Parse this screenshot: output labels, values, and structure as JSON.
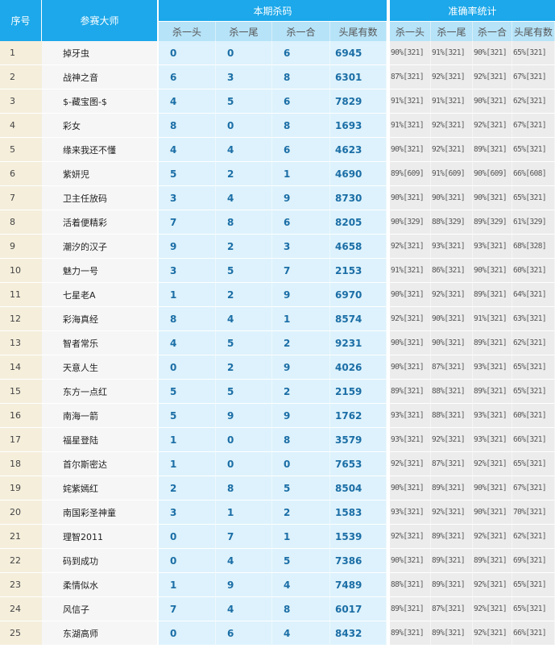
{
  "header": {
    "no": "序号",
    "name": "参赛大师",
    "group1": "本期杀码",
    "group2": "准确率统计",
    "cols": [
      "杀一头",
      "杀一尾",
      "杀一合",
      "头尾有数"
    ],
    "stat_cols": [
      "杀一头",
      "杀一尾",
      "杀一合",
      "头尾有数"
    ]
  },
  "colors": {
    "header": "#1ca8ea",
    "subheader": "#b6e3f8",
    "number": "#1b6ea6"
  },
  "rows": [
    {
      "no": "1",
      "name": "掉牙虫",
      "k": [
        "0",
        "0",
        "6",
        "6945"
      ],
      "s": [
        "90%[321]",
        "91%[321]",
        "90%[321]",
        "65%[321]"
      ]
    },
    {
      "no": "2",
      "name": "战神之音",
      "k": [
        "6",
        "3",
        "8",
        "6301"
      ],
      "s": [
        "87%[321]",
        "92%[321]",
        "92%[321]",
        "67%[321]"
      ]
    },
    {
      "no": "3",
      "name": "$-藏宝图-$",
      "k": [
        "4",
        "5",
        "6",
        "7829"
      ],
      "s": [
        "91%[321]",
        "91%[321]",
        "90%[321]",
        "62%[321]"
      ]
    },
    {
      "no": "4",
      "name": "彩女",
      "k": [
        "8",
        "0",
        "8",
        "1693"
      ],
      "s": [
        "91%[321]",
        "92%[321]",
        "92%[321]",
        "67%[321]"
      ]
    },
    {
      "no": "5",
      "name": "缘来我还不懂",
      "k": [
        "4",
        "4",
        "6",
        "4623"
      ],
      "s": [
        "90%[321]",
        "92%[321]",
        "89%[321]",
        "65%[321]"
      ]
    },
    {
      "no": "6",
      "name": "紫妍児",
      "k": [
        "5",
        "2",
        "1",
        "4690"
      ],
      "s": [
        "89%[609]",
        "91%[609]",
        "90%[609]",
        "66%[608]"
      ]
    },
    {
      "no": "7",
      "name": "卫主任放码",
      "k": [
        "3",
        "4",
        "9",
        "8730"
      ],
      "s": [
        "90%[321]",
        "90%[321]",
        "90%[321]",
        "65%[321]"
      ]
    },
    {
      "no": "8",
      "name": "活着便精彩",
      "k": [
        "7",
        "8",
        "6",
        "8205"
      ],
      "s": [
        "90%[329]",
        "88%[329]",
        "89%[329]",
        "61%[329]"
      ]
    },
    {
      "no": "9",
      "name": "潮汐的汉子",
      "k": [
        "9",
        "2",
        "3",
        "4658"
      ],
      "s": [
        "92%[321]",
        "93%[321]",
        "93%[321]",
        "68%[328]"
      ]
    },
    {
      "no": "10",
      "name": "魅力一号",
      "k": [
        "3",
        "5",
        "7",
        "2153"
      ],
      "s": [
        "91%[321]",
        "86%[321]",
        "90%[321]",
        "60%[321]"
      ]
    },
    {
      "no": "11",
      "name": "七星老A",
      "k": [
        "1",
        "2",
        "9",
        "6970"
      ],
      "s": [
        "90%[321]",
        "92%[321]",
        "89%[321]",
        "64%[321]"
      ]
    },
    {
      "no": "12",
      "name": "彩海真经",
      "k": [
        "8",
        "4",
        "1",
        "8574"
      ],
      "s": [
        "92%[321]",
        "90%[321]",
        "91%[321]",
        "63%[321]"
      ]
    },
    {
      "no": "13",
      "name": "智者常乐",
      "k": [
        "4",
        "5",
        "2",
        "9231"
      ],
      "s": [
        "90%[321]",
        "90%[321]",
        "89%[321]",
        "62%[321]"
      ]
    },
    {
      "no": "14",
      "name": "天意人生",
      "k": [
        "0",
        "2",
        "9",
        "4026"
      ],
      "s": [
        "90%[321]",
        "87%[321]",
        "93%[321]",
        "65%[321]"
      ]
    },
    {
      "no": "15",
      "name": "东方一点红",
      "k": [
        "5",
        "5",
        "2",
        "2159"
      ],
      "s": [
        "89%[321]",
        "88%[321]",
        "89%[321]",
        "65%[321]"
      ]
    },
    {
      "no": "16",
      "name": "南海一箭",
      "k": [
        "5",
        "9",
        "9",
        "1762"
      ],
      "s": [
        "93%[321]",
        "88%[321]",
        "93%[321]",
        "60%[321]"
      ]
    },
    {
      "no": "17",
      "name": "福星登陆",
      "k": [
        "1",
        "0",
        "8",
        "3579"
      ],
      "s": [
        "93%[321]",
        "92%[321]",
        "93%[321]",
        "66%[321]"
      ]
    },
    {
      "no": "18",
      "name": "首尔斯密达",
      "k": [
        "1",
        "0",
        "0",
        "7653"
      ],
      "s": [
        "92%[321]",
        "87%[321]",
        "92%[321]",
        "65%[321]"
      ]
    },
    {
      "no": "19",
      "name": "姹紫嫣红",
      "k": [
        "2",
        "8",
        "5",
        "8504"
      ],
      "s": [
        "90%[321]",
        "89%[321]",
        "90%[321]",
        "67%[321]"
      ]
    },
    {
      "no": "20",
      "name": "南国彩圣神童",
      "k": [
        "3",
        "1",
        "2",
        "1583"
      ],
      "s": [
        "93%[321]",
        "92%[321]",
        "90%[321]",
        "70%[321]"
      ]
    },
    {
      "no": "21",
      "name": "理智2011",
      "k": [
        "0",
        "7",
        "1",
        "1539"
      ],
      "s": [
        "92%[321]",
        "89%[321]",
        "92%[321]",
        "62%[321]"
      ]
    },
    {
      "no": "22",
      "name": "码到成功",
      "k": [
        "0",
        "4",
        "5",
        "7386"
      ],
      "s": [
        "90%[321]",
        "89%[321]",
        "89%[321]",
        "69%[321]"
      ]
    },
    {
      "no": "23",
      "name": "柔情似水",
      "k": [
        "1",
        "9",
        "4",
        "7489"
      ],
      "s": [
        "88%[321]",
        "89%[321]",
        "92%[321]",
        "65%[321]"
      ]
    },
    {
      "no": "24",
      "name": "风信子",
      "k": [
        "7",
        "4",
        "8",
        "6017"
      ],
      "s": [
        "89%[321]",
        "87%[321]",
        "92%[321]",
        "65%[321]"
      ]
    },
    {
      "no": "25",
      "name": "东湖高师",
      "k": [
        "0",
        "6",
        "4",
        "8432"
      ],
      "s": [
        "89%[321]",
        "89%[321]",
        "92%[321]",
        "66%[321]"
      ]
    }
  ]
}
